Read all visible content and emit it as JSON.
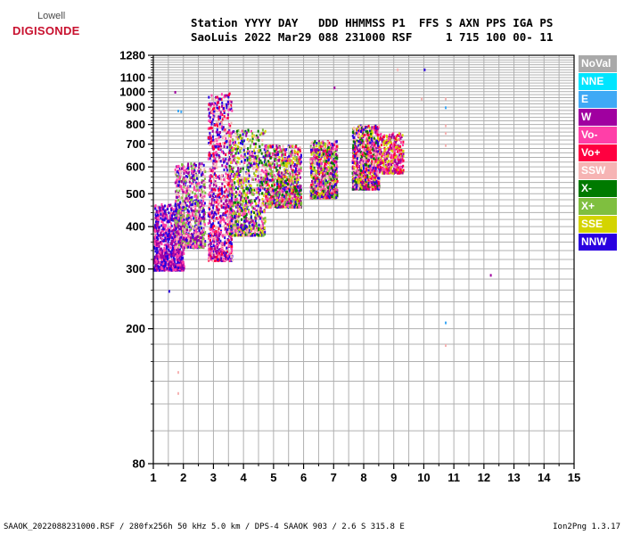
{
  "logo": {
    "line1": "Lowell",
    "line2": "DIGISONDE"
  },
  "header": {
    "line1": "Station YYYY DAY   DDD HHMMSS P1  FFS S AXN PPS IGA PS",
    "line2": "SaoLuis 2022 Mar29 088 231000 RSF     1 715 100 00- 11"
  },
  "footer": {
    "left": "SAAOK_2022088231000.RSF / 280fx256h 50 kHz 5.0 km / DPS-4 SAAOK 903 / 2.6 S 315.8 E",
    "right": "Ion2Png 1.3.17"
  },
  "legend": [
    {
      "label": "NoVal",
      "color": "#a9a9a9"
    },
    {
      "label": "NNE",
      "color": "#00e5ff"
    },
    {
      "label": "E",
      "color": "#3fa9f5"
    },
    {
      "label": "W",
      "color": "#a000a0"
    },
    {
      "label": "Vo-",
      "color": "#ff3fa8"
    },
    {
      "label": "Vo+",
      "color": "#ff0040"
    },
    {
      "label": "SSW",
      "color": "#f6b4b4"
    },
    {
      "label": "X-",
      "color": "#007a00"
    },
    {
      "label": "X+",
      "color": "#7fbf3f"
    },
    {
      "label": "SSE",
      "color": "#d4d400"
    },
    {
      "label": "NNW",
      "color": "#2a00e0"
    }
  ],
  "chart_data": {
    "type": "scatter",
    "title": "",
    "xlabel": "",
    "ylabel": "",
    "xlim": [
      1,
      15
    ],
    "ylim": [
      80,
      1280
    ],
    "y_scale": "log",
    "x_ticks": [
      1,
      2,
      3,
      4,
      5,
      6,
      7,
      8,
      9,
      10,
      11,
      12,
      13,
      14,
      15
    ],
    "y_ticks": [
      80,
      200,
      300,
      400,
      500,
      600,
      700,
      800,
      900,
      1000,
      1100,
      1280
    ],
    "grid": true,
    "legend_position": "right",
    "clusters": [
      {
        "x_range": [
          1.0,
          2.0
        ],
        "y_range": [
          300,
          470
        ],
        "series": [
          "NNW",
          "W",
          "Vo-"
        ],
        "density": "high"
      },
      {
        "x_range": [
          1.7,
          2.7
        ],
        "y_range": [
          350,
          620
        ],
        "series": [
          "W",
          "NNW",
          "Vo-",
          "SSW",
          "X+"
        ],
        "density": "high"
      },
      {
        "x_range": [
          2.8,
          3.6
        ],
        "y_range": [
          320,
          1000
        ],
        "series": [
          "W",
          "NNW",
          "Vo-",
          "Vo+",
          "SSW"
        ],
        "density": "high"
      },
      {
        "x_range": [
          3.5,
          4.7
        ],
        "y_range": [
          380,
          780
        ],
        "series": [
          "W",
          "Vo-",
          "SSW",
          "X-",
          "X+",
          "SSE",
          "NNW"
        ],
        "density": "high"
      },
      {
        "x_range": [
          4.7,
          5.9
        ],
        "y_range": [
          460,
          700
        ],
        "series": [
          "W",
          "Vo-",
          "Vo+",
          "SSW",
          "X-",
          "X+",
          "SSE",
          "NNW"
        ],
        "density": "high"
      },
      {
        "x_range": [
          6.2,
          7.1
        ],
        "y_range": [
          490,
          720
        ],
        "series": [
          "W",
          "Vo-",
          "Vo+",
          "SSW",
          "X-",
          "X+",
          "SSE",
          "NNW"
        ],
        "density": "high"
      },
      {
        "x_range": [
          7.6,
          8.5
        ],
        "y_range": [
          520,
          800
        ],
        "series": [
          "W",
          "Vo-",
          "Vo+",
          "SSW",
          "X-",
          "SSE",
          "NNW"
        ],
        "density": "high"
      },
      {
        "x_range": [
          8.5,
          9.3
        ],
        "y_range": [
          580,
          760
        ],
        "series": [
          "W",
          "Vo-",
          "Vo+",
          "SSE"
        ],
        "density": "medium"
      }
    ],
    "isolated_points": [
      {
        "x": 10.7,
        "y": 960,
        "series": "SSW"
      },
      {
        "x": 10.7,
        "y": 905,
        "series": "E"
      },
      {
        "x": 10.7,
        "y": 800,
        "series": "SSW"
      },
      {
        "x": 10.7,
        "y": 760,
        "series": "SSW"
      },
      {
        "x": 10.7,
        "y": 700,
        "series": "SSW"
      },
      {
        "x": 10.7,
        "y": 210,
        "series": "E"
      },
      {
        "x": 10.7,
        "y": 180,
        "series": "SSW"
      },
      {
        "x": 10.0,
        "y": 1170,
        "series": "NNW"
      },
      {
        "x": 12.2,
        "y": 290,
        "series": "W"
      },
      {
        "x": 9.9,
        "y": 960,
        "series": "SSW"
      },
      {
        "x": 1.8,
        "y": 885,
        "series": "E"
      },
      {
        "x": 1.9,
        "y": 880,
        "series": "E"
      },
      {
        "x": 1.7,
        "y": 1005,
        "series": "W"
      },
      {
        "x": 1.8,
        "y": 150,
        "series": "SSW"
      },
      {
        "x": 1.8,
        "y": 130,
        "series": "SSW"
      },
      {
        "x": 7.0,
        "y": 1035,
        "series": "W"
      },
      {
        "x": 9.1,
        "y": 1170,
        "series": "SSW"
      },
      {
        "x": 1.5,
        "y": 260,
        "series": "NNW"
      }
    ]
  }
}
